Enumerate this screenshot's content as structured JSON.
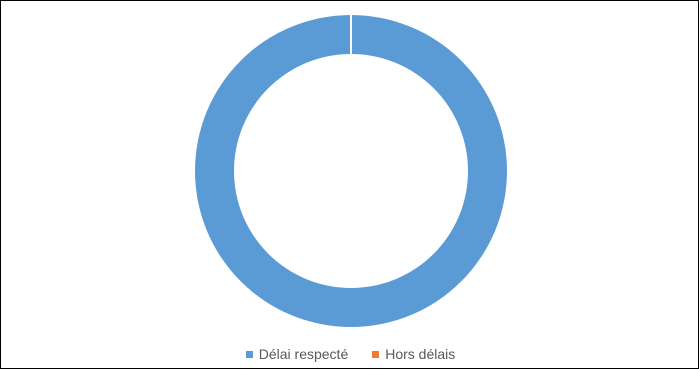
{
  "chart_data": {
    "type": "pie",
    "title": "",
    "categories": [
      "Délai respecté",
      "Hors délais"
    ],
    "values": [
      100,
      0
    ],
    "colors": [
      "#5b9bd5",
      "#ed7d31"
    ],
    "legend_position": "bottom",
    "donut": true
  },
  "legend": {
    "items": [
      {
        "label": "Délai respecté",
        "color": "#5b9bd5"
      },
      {
        "label": "Hors délais",
        "color": "#ed7d31"
      }
    ]
  }
}
